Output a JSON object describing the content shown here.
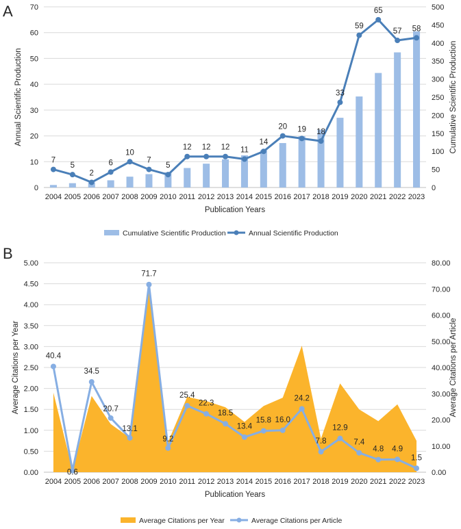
{
  "colors": {
    "bar": "#9dbde6",
    "line": "#4a7fb8",
    "area": "#fbb42c",
    "line_b": "#86aee3",
    "grid": "#d9d9d9",
    "text": "#262626"
  },
  "chart_data": [
    {
      "type": "bar",
      "panel_label": "A",
      "xlabel": "Publication Years",
      "ylabel": "Annual Scientific Production",
      "y2label": "Cumulative Scientific Production",
      "ylim": [
        0,
        70
      ],
      "y2lim": [
        0,
        500
      ],
      "yticks": [
        "0",
        "10",
        "20",
        "30",
        "40",
        "50",
        "60",
        "70"
      ],
      "y2ticks": [
        "0",
        "50",
        "100",
        "150",
        "200",
        "250",
        "300",
        "350",
        "400",
        "450",
        "500"
      ],
      "categories": [
        "2004",
        "2005",
        "2006",
        "2007",
        "2008",
        "2009",
        "2010",
        "2011",
        "2012",
        "2013",
        "2014",
        "2015",
        "2016",
        "2017",
        "2018",
        "2019",
        "2020",
        "2021",
        "2022",
        "2023"
      ],
      "series": [
        {
          "name": "Cumulative Scientific Production",
          "kind": "bar",
          "axis": "right",
          "values": [
            7,
            12,
            14,
            20,
            30,
            37,
            42,
            54,
            66,
            78,
            89,
            103,
            123,
            142,
            160,
            193,
            252,
            317,
            374,
            432
          ]
        },
        {
          "name": "Annual Scientific Production",
          "kind": "line",
          "axis": "left",
          "values": [
            7,
            5,
            2,
            6,
            10,
            7,
            5,
            12,
            12,
            12,
            11,
            14,
            20,
            19,
            18,
            33,
            59,
            65,
            57,
            58
          ],
          "labels": [
            "7",
            "5",
            "2",
            "6",
            "10",
            "7",
            "5",
            "12",
            "12",
            "12",
            "11",
            "14",
            "20",
            "19",
            "18",
            "33",
            "59",
            "65",
            "57",
            "58"
          ]
        }
      ],
      "legend": [
        "Cumulative Scientific Production",
        "Annual Scientific Production"
      ]
    },
    {
      "type": "area",
      "panel_label": "B",
      "xlabel": "Publication Years",
      "ylabel": "Average Citations per Year",
      "y2label": "Average Citations per Article",
      "ylim": [
        0,
        5
      ],
      "y2lim": [
        0,
        80
      ],
      "yticks": [
        "0.00",
        "0.50",
        "1.00",
        "1.50",
        "2.00",
        "2.50",
        "3.00",
        "3.50",
        "4.00",
        "4.50",
        "5.00"
      ],
      "y2ticks": [
        "0.00",
        "10.00",
        "20.00",
        "30.00",
        "40.00",
        "50.00",
        "60.00",
        "70.00",
        "80.00"
      ],
      "categories": [
        "2004",
        "2005",
        "2006",
        "2007",
        "2008",
        "2009",
        "2010",
        "2011",
        "2012",
        "2013",
        "2014",
        "2015",
        "2016",
        "2017",
        "2018",
        "2019",
        "2020",
        "2021",
        "2022",
        "2023"
      ],
      "series": [
        {
          "name": "Average Citations per Year",
          "kind": "area",
          "axis": "left",
          "values": [
            1.9,
            0.05,
            1.82,
            1.15,
            0.82,
            4.45,
            0.72,
            1.8,
            1.7,
            1.55,
            1.2,
            1.58,
            1.78,
            3.02,
            0.8,
            2.12,
            1.5,
            1.22,
            1.62,
            0.75
          ]
        },
        {
          "name": "Average Citations per Article",
          "kind": "line",
          "axis": "right",
          "values": [
            40.4,
            0.6,
            34.5,
            20.7,
            13.1,
            71.7,
            9.2,
            25.4,
            22.3,
            18.5,
            13.4,
            15.8,
            16.0,
            24.2,
            7.8,
            12.9,
            7.4,
            4.8,
            4.9,
            1.5
          ],
          "labels": [
            "40.4",
            "0.6",
            "34.5",
            "20.7",
            "13.1",
            "71.7",
            "9.2",
            "25.4",
            "22.3",
            "18.5",
            "13.4",
            "15.8",
            "16.0",
            "24.2",
            "7.8",
            "12.9",
            "7.4",
            "4.8",
            "4.9",
            "1.5"
          ]
        }
      ],
      "legend": [
        "Average Citations per Year",
        "Average Citations per Article"
      ]
    }
  ]
}
